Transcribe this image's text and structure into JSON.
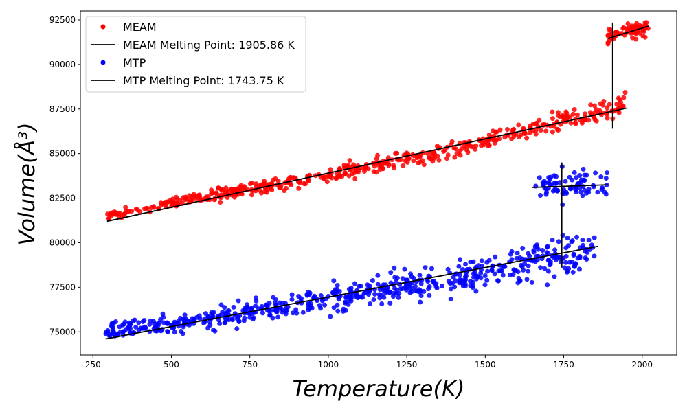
{
  "chart_data": {
    "type": "scatter",
    "xlabel": "Temperature(K)",
    "ylabel": "Volume(Å³)",
    "xlim": [
      210,
      2110
    ],
    "ylim": [
      73700,
      93000
    ],
    "xticks": [
      250,
      500,
      750,
      1000,
      1250,
      1500,
      1750,
      2000
    ],
    "yticks": [
      75000,
      77500,
      80000,
      82500,
      85000,
      87500,
      90000,
      92500
    ],
    "grid": false,
    "legend_position": "top-left",
    "legend": [
      {
        "label": "MEAM",
        "kind": "marker",
        "color": "#ff0000"
      },
      {
        "label": "MEAM Melting Point: 1905.86 K",
        "kind": "line",
        "color": "#000000"
      },
      {
        "label": "MTP",
        "kind": "marker",
        "color": "#0000ff"
      },
      {
        "label": "MTP Melting Point: 1743.75 K",
        "kind": "line",
        "color": "#000000"
      }
    ],
    "series": [
      {
        "name": "MEAM",
        "color": "#ff0000",
        "clusters": [
          {
            "phase": "solid",
            "x_range": [
              290,
              1950
            ],
            "trend": [
              [
                290,
                81450
              ],
              [
                600,
                82550
              ],
              [
                1000,
                83800
              ],
              [
                1400,
                85250
              ],
              [
                1950,
                87800
              ]
            ],
            "spread": 220,
            "count": 520
          },
          {
            "phase": "liquid",
            "x_range": [
              1890,
              2020
            ],
            "trend": [
              [
                1890,
                91600
              ],
              [
                2020,
                92150
              ]
            ],
            "spread": 220,
            "count": 70
          }
        ],
        "fit_lines": [
          {
            "x": [
              295,
              1950
            ],
            "y": [
              81200,
              87550
            ]
          },
          {
            "x": [
              1890,
              2020
            ],
            "y": [
              91450,
              92150
            ]
          }
        ],
        "melting_point": {
          "x": 1905.86,
          "y_range": [
            86400,
            92350
          ]
        }
      },
      {
        "name": "MTP",
        "color": "#0000ff",
        "clusters": [
          {
            "phase": "solid",
            "x_range": [
              290,
              1850
            ],
            "trend": [
              [
                290,
                75050
              ],
              [
                600,
                75700
              ],
              [
                1000,
                76800
              ],
              [
                1400,
                78000
              ],
              [
                1850,
                79600
              ]
            ],
            "spread": 380,
            "count": 620
          },
          {
            "phase": "liquid",
            "x_range": [
              1660,
              1890
            ],
            "trend": [
              [
                1660,
                83200
              ],
              [
                1890,
                83250
              ]
            ],
            "spread": 380,
            "count": 80
          }
        ],
        "fit_lines": [
          {
            "x": [
              290,
              1860
            ],
            "y": [
              74600,
              79800
            ]
          },
          {
            "x": [
              1650,
              1890
            ],
            "y": [
              83100,
              83250
            ]
          }
        ],
        "melting_point": {
          "x": 1743.75,
          "y_range": [
            78600,
            84500
          ]
        }
      }
    ]
  }
}
